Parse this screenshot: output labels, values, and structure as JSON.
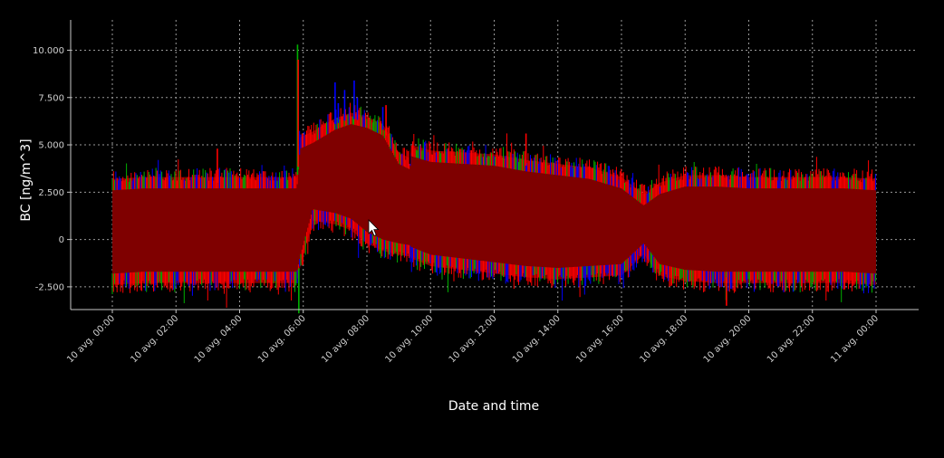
{
  "chart_data": {
    "type": "area",
    "xlabel": "Date and time",
    "ylabel": "BC   [ng/m^3]",
    "ylim": [
      -3700,
      11600
    ],
    "y_ticks": [
      {
        "value": 10000,
        "label": "10.000"
      },
      {
        "value": 7500,
        "label": "7.500"
      },
      {
        "value": 5000,
        "label": "5.000"
      },
      {
        "value": 2500,
        "label": "2.500"
      },
      {
        "value": 0,
        "label": "0"
      },
      {
        "value": -2500,
        "label": "-2.500"
      }
    ],
    "x_ticks": [
      "10 avg. 00:00",
      "10 avg. 02:00",
      "10 avg. 04:00",
      "10 avg. 06:00",
      "10 avg. 08:00",
      "10 avg. 10:00",
      "10 avg. 12:00",
      "10 avg. 14:00",
      "10 avg. 16:00",
      "10 avg. 18:00",
      "10 avg. 20:00",
      "10 avg. 22:00",
      "11 avg. 00:00"
    ],
    "x_range_hours": [
      0,
      24
    ],
    "grid": true,
    "grid_style": "dotted",
    "legend": "none",
    "colors": {
      "background": "#000000",
      "band": "#7f0000",
      "series_red": "#ff0000",
      "series_green": "#00b000",
      "series_blue": "#0000ff",
      "series_yellow": "#ffff00",
      "grid": "#9a9a9a",
      "axis": "#c8c8c8"
    },
    "envelope": [
      {
        "x": 0.0,
        "upper": 3200,
        "lower": -2400
      },
      {
        "x": 1.0,
        "upper": 3300,
        "lower": -2300
      },
      {
        "x": 2.0,
        "upper": 3300,
        "lower": -2300
      },
      {
        "x": 3.0,
        "upper": 3300,
        "lower": -2300
      },
      {
        "x": 4.0,
        "upper": 3300,
        "lower": -2300
      },
      {
        "x": 5.0,
        "upper": 3300,
        "lower": -2300
      },
      {
        "x": 5.8,
        "upper": 3300,
        "lower": -2300
      },
      {
        "x": 5.9,
        "upper": 5400,
        "lower": -1500
      },
      {
        "x": 6.3,
        "upper": 5700,
        "lower": 1000
      },
      {
        "x": 7.0,
        "upper": 6400,
        "lower": 800
      },
      {
        "x": 7.5,
        "upper": 6700,
        "lower": 500
      },
      {
        "x": 8.0,
        "upper": 6500,
        "lower": -200
      },
      {
        "x": 8.5,
        "upper": 6100,
        "lower": -600
      },
      {
        "x": 9.0,
        "upper": 4600,
        "lower": -800
      },
      {
        "x": 9.35,
        "upper": 4300,
        "lower": -900
      },
      {
        "x": 9.4,
        "upper": 5000,
        "lower": -1000
      },
      {
        "x": 10.0,
        "upper": 4700,
        "lower": -1400
      },
      {
        "x": 11.0,
        "upper": 4600,
        "lower": -1600
      },
      {
        "x": 12.0,
        "upper": 4500,
        "lower": -1800
      },
      {
        "x": 13.0,
        "upper": 4200,
        "lower": -2000
      },
      {
        "x": 14.0,
        "upper": 4000,
        "lower": -2100
      },
      {
        "x": 15.0,
        "upper": 3800,
        "lower": -2000
      },
      {
        "x": 16.0,
        "upper": 3300,
        "lower": -1900
      },
      {
        "x": 16.7,
        "upper": 2400,
        "lower": -800
      },
      {
        "x": 17.2,
        "upper": 3000,
        "lower": -1900
      },
      {
        "x": 18.0,
        "upper": 3400,
        "lower": -2200
      },
      {
        "x": 19.0,
        "upper": 3400,
        "lower": -2300
      },
      {
        "x": 20.0,
        "upper": 3300,
        "lower": -2300
      },
      {
        "x": 21.0,
        "upper": 3300,
        "lower": -2300
      },
      {
        "x": 22.0,
        "upper": 3300,
        "lower": -2300
      },
      {
        "x": 23.0,
        "upper": 3300,
        "lower": -2300
      },
      {
        "x": 24.0,
        "upper": 3200,
        "lower": -2400
      }
    ],
    "spikes": [
      {
        "x": 5.82,
        "value": 10300,
        "color": "#00b000"
      },
      {
        "x": 5.84,
        "value": 9500,
        "color": "#ff0000"
      },
      {
        "x": 5.86,
        "value": -3900,
        "color": "#00b000"
      },
      {
        "x": 7.0,
        "value": 8300,
        "color": "#0000ff"
      },
      {
        "x": 7.1,
        "value": 7200,
        "color": "#0000ff"
      },
      {
        "x": 7.3,
        "value": 7900,
        "color": "#0000ff"
      },
      {
        "x": 7.6,
        "value": 8400,
        "color": "#0000ff"
      },
      {
        "x": 7.7,
        "value": 7500,
        "color": "#0000ff"
      },
      {
        "x": 8.5,
        "value": 7000,
        "color": "#0000ff"
      },
      {
        "x": 8.6,
        "value": 7100,
        "color": "#ff0000"
      },
      {
        "x": 9.35,
        "value": 5100,
        "color": "#000000"
      },
      {
        "x": 13.0,
        "value": 5600,
        "color": "#ff0000"
      },
      {
        "x": 19.3,
        "value": -3500,
        "color": "#ff0000"
      },
      {
        "x": 3.3,
        "value": 4800,
        "color": "#ff0000"
      }
    ]
  }
}
